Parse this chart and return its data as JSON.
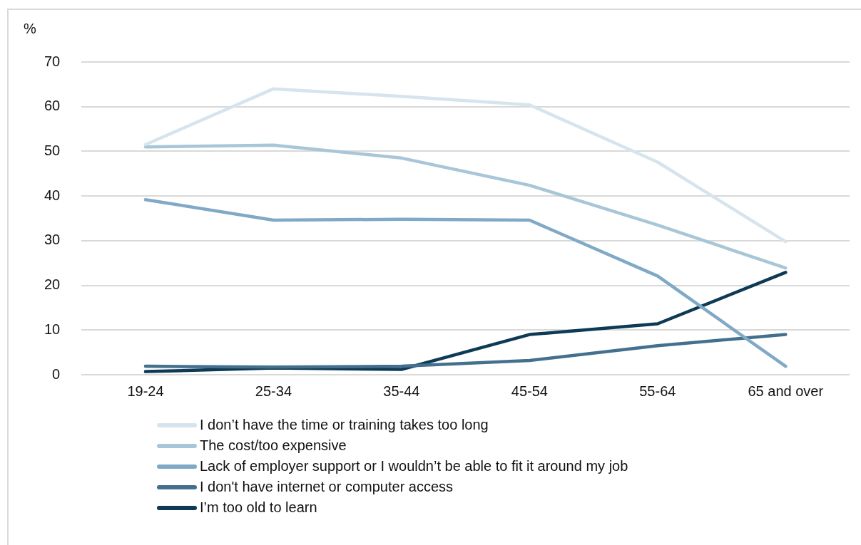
{
  "chart_data": {
    "type": "line",
    "ylabel": "%",
    "categories": [
      "19-24",
      "25-34",
      "35-44",
      "45-54",
      "55-64",
      "65 and over"
    ],
    "ylim": [
      0,
      70
    ],
    "yticks": [
      0,
      10,
      20,
      30,
      40,
      50,
      60,
      70
    ],
    "grid": "y",
    "legend": "bottom",
    "marker": "none",
    "line_style": "solid",
    "series": [
      {
        "name": "I don’t have the time or training takes too long",
        "color": "#d6e4ee",
        "values": [
          51.5,
          64.0,
          62.3,
          60.4,
          47.6,
          29.8
        ]
      },
      {
        "name": "The cost/too expensive",
        "color": "#a9c6d9",
        "values": [
          51.0,
          51.4,
          48.5,
          42.4,
          33.5,
          23.9
        ]
      },
      {
        "name": "Lack of employer support or I wouldn’t be able to fit it around my job",
        "color": "#7fa9c6",
        "values": [
          39.2,
          34.6,
          34.8,
          34.6,
          22.1,
          1.9
        ]
      },
      {
        "name": "I don't have internet or computer access",
        "color": "#44708f",
        "values": [
          1.9,
          1.7,
          1.9,
          3.2,
          6.5,
          9.0
        ]
      },
      {
        "name": "I’m too old to learn",
        "color": "#0e3a55",
        "values": [
          0.7,
          1.5,
          1.2,
          9.0,
          11.4,
          22.9
        ]
      }
    ]
  }
}
